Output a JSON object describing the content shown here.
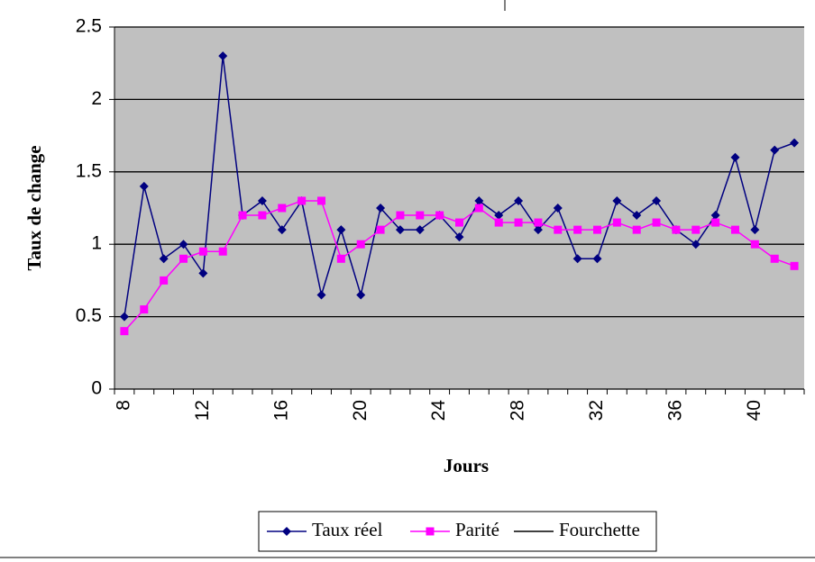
{
  "chart_data": {
    "type": "line",
    "xlabel": "Jours",
    "ylabel": "Taux de change",
    "categories": [
      8,
      null,
      null,
      null,
      12,
      null,
      null,
      null,
      16,
      null,
      null,
      null,
      20,
      null,
      null,
      null,
      24,
      null,
      null,
      null,
      28,
      null,
      null,
      null,
      32,
      null,
      null,
      null,
      36,
      null,
      null,
      null,
      40,
      null,
      null
    ],
    "series": [
      {
        "name": "Taux réel",
        "color": "#000080",
        "marker": "diamond",
        "values": [
          0.5,
          1.4,
          0.9,
          1.0,
          0.8,
          2.3,
          1.2,
          1.3,
          1.1,
          1.3,
          0.65,
          1.1,
          0.65,
          1.25,
          1.1,
          1.1,
          1.2,
          1.05,
          1.3,
          1.2,
          1.3,
          1.1,
          1.25,
          0.9,
          0.9,
          1.3,
          1.2,
          1.3,
          1.1,
          1.0,
          1.2,
          1.6,
          1.1,
          1.65,
          1.7
        ]
      },
      {
        "name": "Parité",
        "color": "#ff00ff",
        "marker": "square",
        "values": [
          0.4,
          0.55,
          0.75,
          0.9,
          0.95,
          0.95,
          1.2,
          1.2,
          1.25,
          1.3,
          1.3,
          0.9,
          1.0,
          1.1,
          1.2,
          1.2,
          1.2,
          1.15,
          1.25,
          1.15,
          1.15,
          1.15,
          1.1,
          1.1,
          1.1,
          1.15,
          1.1,
          1.15,
          1.1,
          1.1,
          1.15,
          1.1,
          1.0,
          0.9,
          0.85
        ]
      },
      {
        "name": "Fourchette",
        "color": "#000000",
        "marker": "none",
        "values": [
          null,
          null,
          null,
          null,
          null,
          null,
          null,
          null,
          null,
          null,
          null,
          null,
          null,
          null,
          null,
          null,
          null,
          null,
          null,
          null,
          null,
          null,
          null,
          null,
          null,
          null,
          null,
          null,
          null,
          null,
          null,
          null,
          null,
          null,
          null
        ]
      }
    ],
    "ylim": [
      0,
      2.5
    ],
    "yticks": [
      0,
      0.5,
      1,
      1.5,
      2,
      2.5
    ],
    "grid": true,
    "legend": "bottom"
  }
}
